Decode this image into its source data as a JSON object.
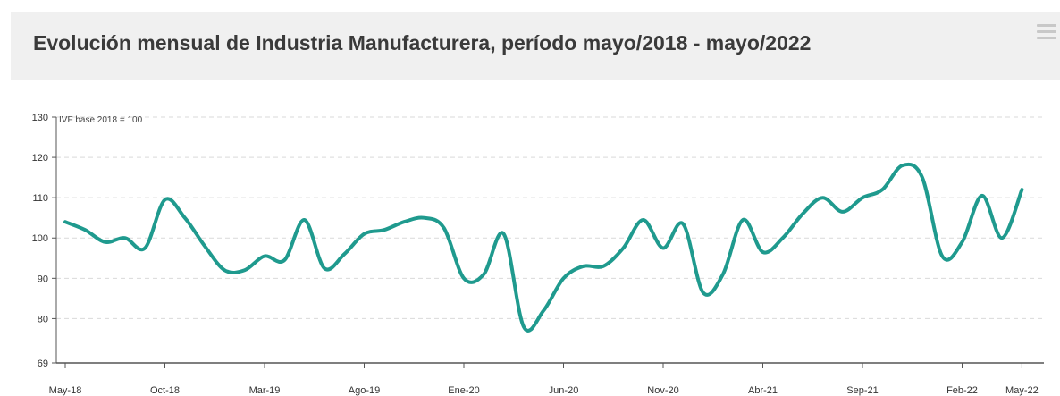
{
  "header": {
    "title": "Evolución mensual de Industria Manufacturera, período mayo/2018 - mayo/2022",
    "menu_icon": "hamburger-menu-icon"
  },
  "chart_data": {
    "type": "line",
    "title": "Evolución mensual de Industria Manufacturera, período mayo/2018 - mayo/2022",
    "ylabel": "IVF base 2018 = 100",
    "xlabel": "",
    "ylim": [
      69,
      130
    ],
    "yticks": [
      69,
      80,
      90,
      100,
      110,
      120,
      130
    ],
    "xticks": [
      "May-18",
      "Oct-18",
      "Mar-19",
      "Ago-19",
      "Ene-20",
      "Jun-20",
      "Nov-20",
      "Abr-21",
      "Sep-21",
      "Feb-22",
      "May-22"
    ],
    "grid": "horizontal dashed",
    "line_color": "#1f9a8e",
    "categories": [
      "May-18",
      "Jun-18",
      "Jul-18",
      "Ago-18",
      "Sep-18",
      "Oct-18",
      "Nov-18",
      "Dic-18",
      "Ene-19",
      "Feb-19",
      "Mar-19",
      "Abr-19",
      "May-19",
      "Jun-19",
      "Jul-19",
      "Ago-19",
      "Sep-19",
      "Oct-19",
      "Nov-19",
      "Dic-19",
      "Ene-20",
      "Feb-20",
      "Mar-20",
      "Abr-20",
      "May-20",
      "Jun-20",
      "Jul-20",
      "Ago-20",
      "Sep-20",
      "Oct-20",
      "Nov-20",
      "Dic-20",
      "Ene-21",
      "Feb-21",
      "Mar-21",
      "Abr-21",
      "May-21",
      "Jun-21",
      "Jul-21",
      "Ago-21",
      "Sep-21",
      "Oct-21",
      "Nov-21",
      "Dic-21",
      "Ene-22",
      "Feb-22",
      "Mar-22",
      "Abr-22",
      "May-22"
    ],
    "series": [
      {
        "values": [
          104,
          102,
          99,
          100,
          97.5,
          109.5,
          105,
          98,
          92,
          92,
          95.5,
          94.5,
          104.5,
          92.5,
          96,
          101,
          102,
          104,
          105,
          102.5,
          90,
          91,
          101,
          78,
          82,
          90,
          93,
          93,
          97.5,
          104.5,
          97.5,
          103.5,
          86.5,
          91,
          104.5,
          96.5,
          100,
          106,
          110,
          106.5,
          110,
          112,
          118,
          115,
          95.5,
          99,
          110.5,
          100,
          112
        ]
      }
    ]
  }
}
